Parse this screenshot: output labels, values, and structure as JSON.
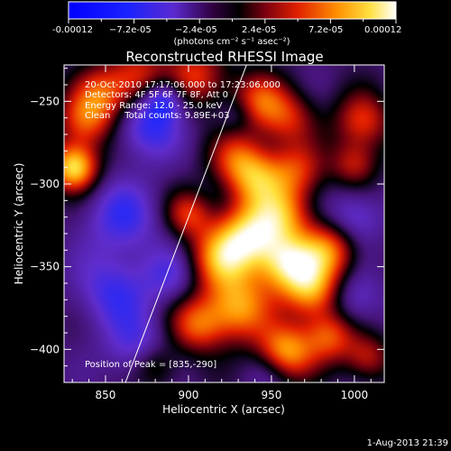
{
  "colorbar": {
    "tick_labels": [
      "-0.00012",
      "−7.2e-05",
      "−2.4e-05",
      "2.4e-05",
      "7.2e-05",
      "0.00012"
    ],
    "units_label": "(photons cm⁻² s⁻¹ asec⁻²)",
    "range": [
      -0.00012,
      0.00012
    ],
    "colormap": "black-blue-purple-red-orange-yellow-white"
  },
  "chart_data": {
    "type": "heatmap",
    "title": "Reconstructed RHESSI Image",
    "xlabel": "Heliocentric X (arcsec)",
    "ylabel": "Heliocentric Y (arcsec)",
    "xlim": [
      825,
      1018
    ],
    "ylim": [
      -420,
      -228
    ],
    "x_ticks": [
      850,
      900,
      950,
      1000
    ],
    "y_ticks": [
      -250,
      -300,
      -350,
      -400
    ],
    "info_lines": [
      "20-Oct-2010 17:17:06.000 to 17:23:06.000",
      "Detectors: 4F 5F 6F 7F 8F, Att 0",
      "Energy Range: 12.0 - 25.0 keV",
      "Clean     Total counts: 9.89E+03"
    ],
    "peak_label": "Position of Peak = [835,-290]",
    "peak_position": [
      835,
      -290
    ],
    "limb_line": [
      [
        862,
        -420
      ],
      [
        935,
        -228
      ]
    ],
    "blobs": [
      {
        "x": 831,
        "y": -290,
        "v": 1.0,
        "s": 10
      },
      {
        "x": 838,
        "y": -262,
        "v": 0.6,
        "s": 12
      },
      {
        "x": 848,
        "y": -245,
        "v": 0.5,
        "s": 12
      },
      {
        "x": 870,
        "y": -236,
        "v": 0.55,
        "s": 13
      },
      {
        "x": 905,
        "y": -235,
        "v": 0.55,
        "s": 13
      },
      {
        "x": 942,
        "y": -250,
        "v": 0.55,
        "s": 12
      },
      {
        "x": 960,
        "y": -260,
        "v": 0.45,
        "s": 12
      },
      {
        "x": 1005,
        "y": -262,
        "v": 0.55,
        "s": 12
      },
      {
        "x": 1000,
        "y": -288,
        "v": 0.45,
        "s": 10
      },
      {
        "x": 930,
        "y": -285,
        "v": 0.55,
        "s": 12
      },
      {
        "x": 942,
        "y": -298,
        "v": 0.6,
        "s": 12
      },
      {
        "x": 965,
        "y": -292,
        "v": 0.5,
        "s": 12
      },
      {
        "x": 958,
        "y": -318,
        "v": 0.55,
        "s": 12
      },
      {
        "x": 938,
        "y": -330,
        "v": 0.85,
        "s": 14
      },
      {
        "x": 920,
        "y": -345,
        "v": 0.75,
        "s": 14
      },
      {
        "x": 960,
        "y": -348,
        "v": 0.9,
        "s": 13
      },
      {
        "x": 985,
        "y": -340,
        "v": 0.65,
        "s": 12
      },
      {
        "x": 975,
        "y": -365,
        "v": 0.7,
        "s": 12
      },
      {
        "x": 930,
        "y": -375,
        "v": 0.75,
        "s": 14
      },
      {
        "x": 905,
        "y": -385,
        "v": 0.6,
        "s": 12
      },
      {
        "x": 958,
        "y": -402,
        "v": 0.85,
        "s": 12
      },
      {
        "x": 985,
        "y": -392,
        "v": 0.6,
        "s": 11
      },
      {
        "x": 900,
        "y": -318,
        "v": 0.5,
        "s": 10
      },
      {
        "x": 880,
        "y": -410,
        "v": 0.4,
        "s": 10
      },
      {
        "x": 1008,
        "y": -405,
        "v": 0.45,
        "s": 10
      },
      {
        "x": 875,
        "y": -265,
        "v": -0.45,
        "s": 14
      },
      {
        "x": 885,
        "y": -248,
        "v": -0.55,
        "s": 9
      },
      {
        "x": 860,
        "y": -320,
        "v": -0.4,
        "s": 16
      },
      {
        "x": 855,
        "y": -365,
        "v": -0.4,
        "s": 16
      },
      {
        "x": 870,
        "y": -400,
        "v": -0.35,
        "s": 14
      },
      {
        "x": 890,
        "y": -355,
        "v": -0.3,
        "s": 12
      },
      {
        "x": 1000,
        "y": -320,
        "v": -0.35,
        "s": 12
      },
      {
        "x": 1000,
        "y": -370,
        "v": -0.3,
        "s": 12
      },
      {
        "x": 930,
        "y": -258,
        "v": -0.2,
        "s": 8
      },
      {
        "x": 950,
        "y": -412,
        "v": -0.25,
        "s": 10
      }
    ]
  },
  "footer": {
    "timestamp": "1-Aug-2013 21:39"
  }
}
